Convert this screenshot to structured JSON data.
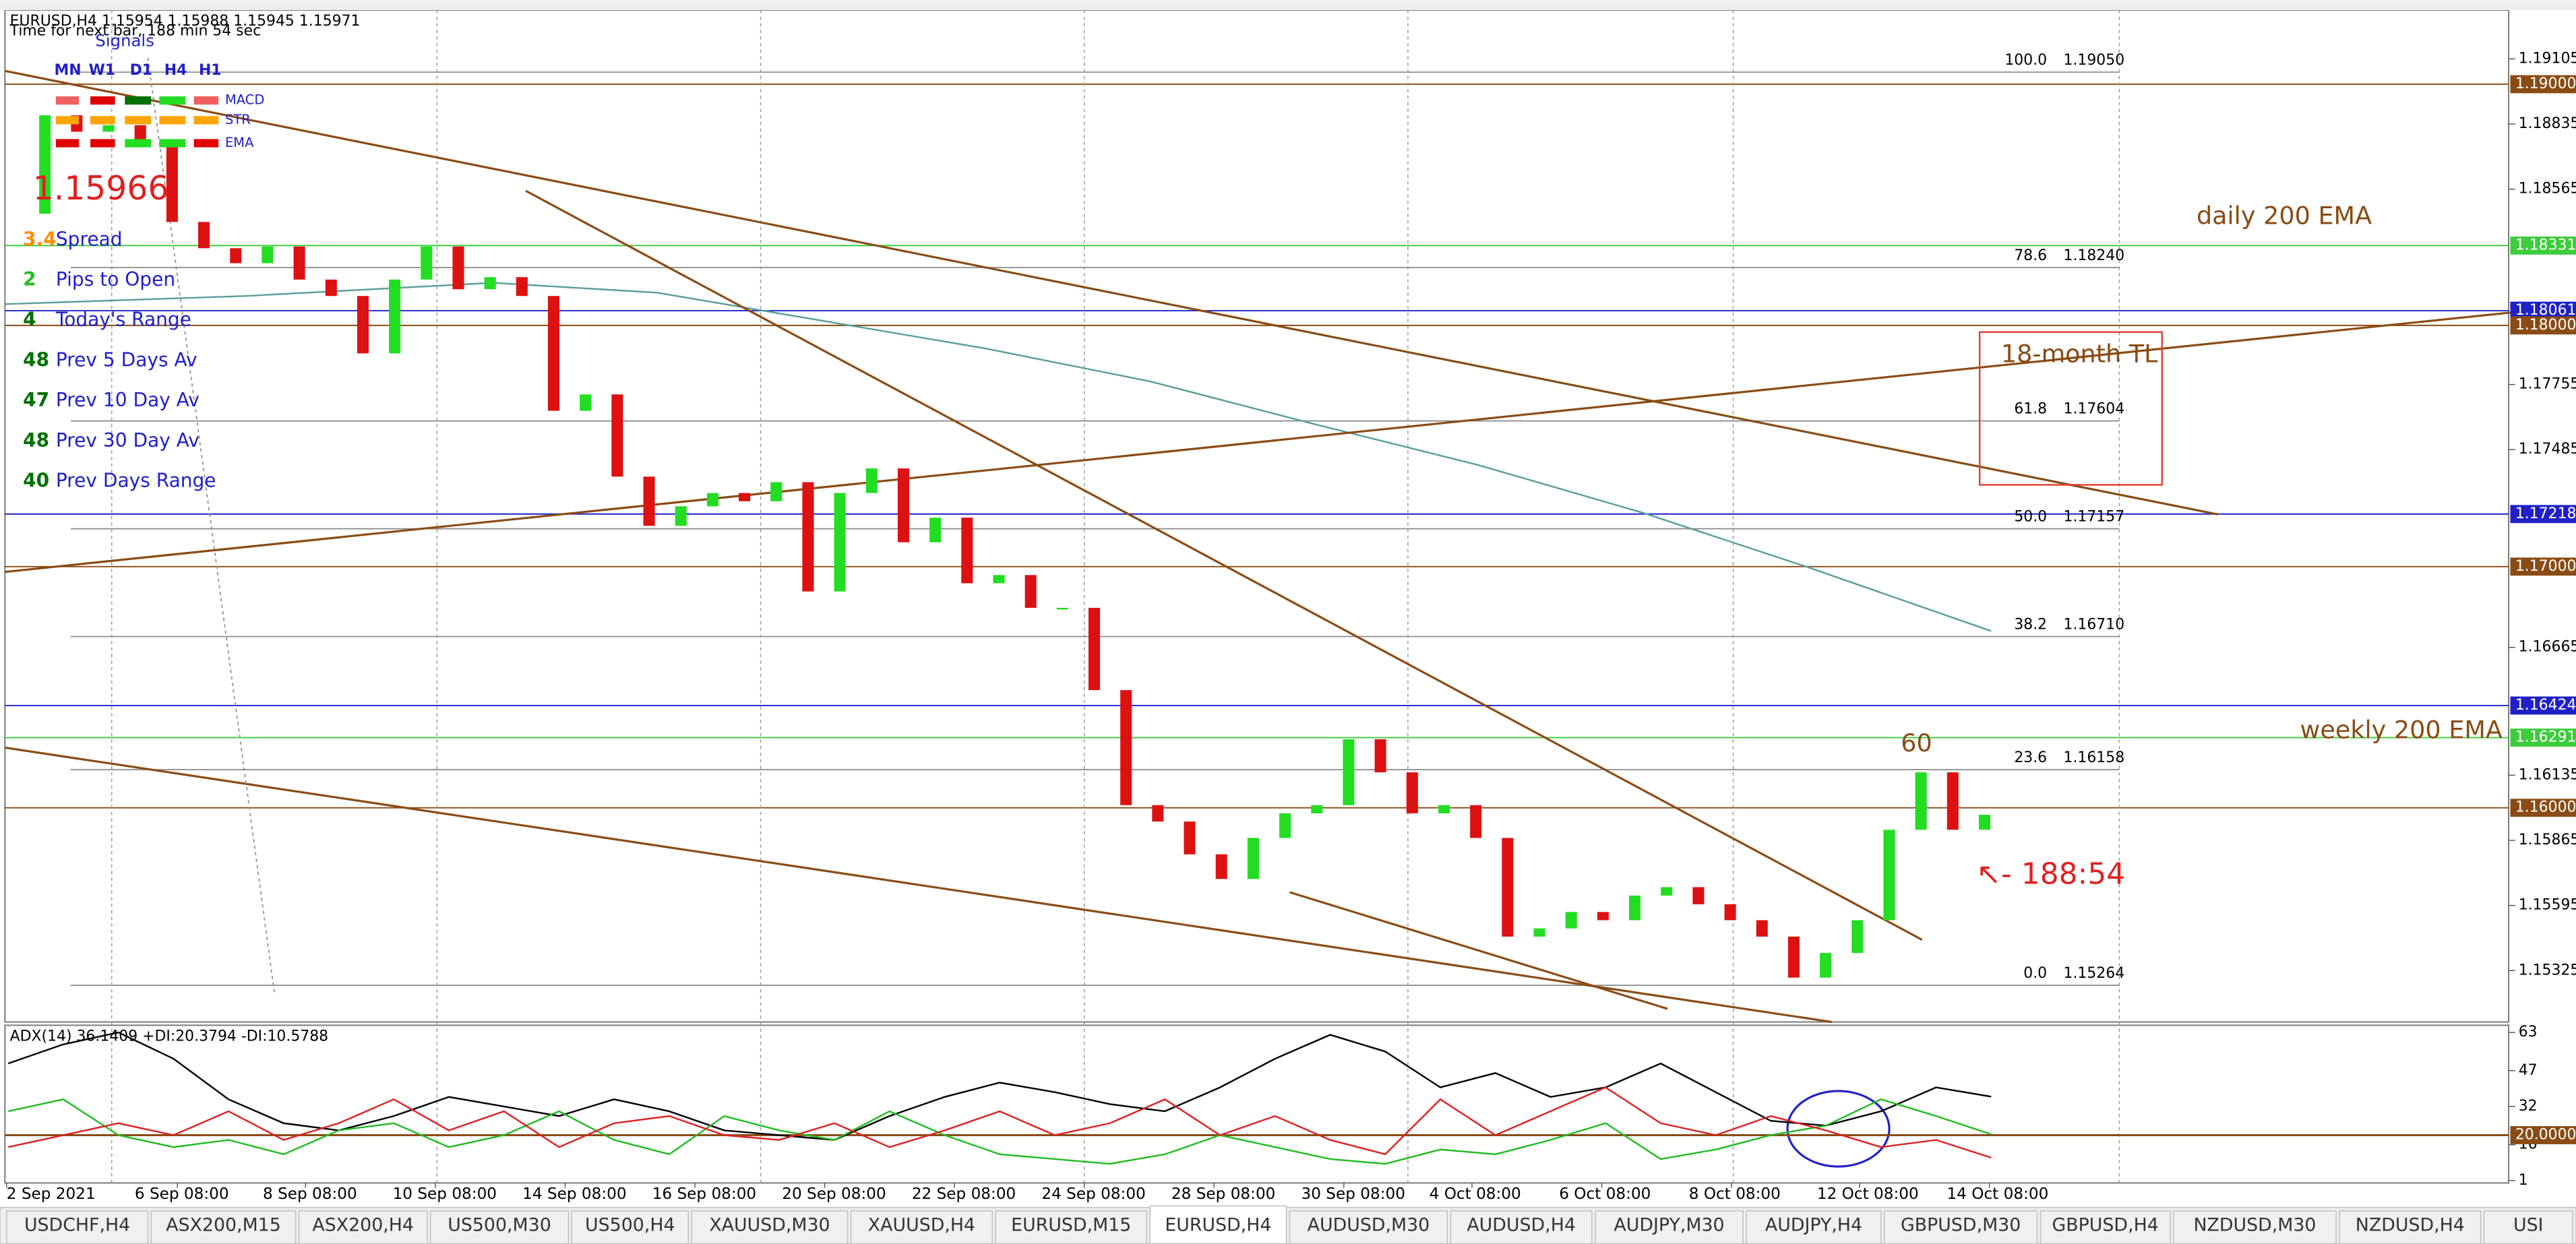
{
  "header": {
    "symbol_line": "EURUSD,H4  1.15954 1.15988 1.15945 1.15971",
    "timer": "Time for next bar, 188 min 54 sec"
  },
  "signals": {
    "title": "Signals",
    "timeframes": [
      "MN",
      "W1",
      "D1",
      "H4",
      "H1"
    ],
    "indicators": [
      "MACD",
      "STR",
      "EMA"
    ]
  },
  "current_price": 1.15966,
  "info_rows": [
    {
      "value": 3.4,
      "label": "Spread"
    },
    {
      "value": 2,
      "label": "Pips to Open"
    },
    {
      "value": 4,
      "label": "Today's Range"
    },
    {
      "value": 48,
      "label": "Prev 5 Days Av"
    },
    {
      "value": 47,
      "label": "Prev 10 Day Av"
    },
    {
      "value": 48,
      "label": "Prev 30 Day Av"
    },
    {
      "value": 40,
      "label": "Prev Days Range"
    }
  ],
  "price_axis": {
    "ylim": [
      1.15112,
      1.19348
    ],
    "ticks": [
      1.19105,
      1.18835,
      1.18565,
      1.17755,
      1.17485,
      1.16665,
      1.16135,
      1.15865,
      1.15595,
      1.15325
    ],
    "level_boxes": [
      {
        "value": 1.19,
        "label": "1.19000",
        "color": "#8a4b14"
      },
      {
        "value": 1.18331,
        "color": "#3ccc3c"
      },
      {
        "value": 1.18061,
        "color": "#2020c8"
      },
      {
        "value": 1.18,
        "label": "1.18000",
        "color": "#8a4b14"
      },
      {
        "value": 1.17218,
        "color": "#2020c8"
      },
      {
        "value": 1.17,
        "label": "1.17000",
        "color": "#8a4b14"
      },
      {
        "value": 1.16424,
        "color": "#2020c8"
      },
      {
        "value": 1.16291,
        "color": "#3ccc3c"
      },
      {
        "value": 1.16,
        "label": "1.16000",
        "color": "#8a4b14"
      }
    ]
  },
  "fib_levels": [
    {
      "pct": {
        "value": 100,
        "label": "100.0"
      },
      "price": {
        "value": 1.1905,
        "label": "1.19050"
      }
    },
    {
      "pct": 78.6,
      "price": {
        "value": 1.1824,
        "label": "1.18240"
      }
    },
    {
      "pct": 61.8,
      "price": 1.17604
    },
    {
      "pct": {
        "value": 50,
        "label": "50.0"
      },
      "price": 1.17157
    },
    {
      "pct": 38.2,
      "price": {
        "value": 1.1671,
        "label": "1.16710"
      }
    },
    {
      "pct": 23.6,
      "price": 1.16158
    },
    {
      "pct": {
        "value": 0,
        "label": "0.0"
      },
      "price": 1.15264
    }
  ],
  "candles": {
    "closes": [
      1.18463,
      1.18871,
      1.18803,
      1.1883,
      1.1876,
      1.18429,
      1.1832,
      1.18258,
      1.18327,
      1.1819,
      1.18122,
      1.17884,
      1.1819,
      1.18327,
      1.1815,
      1.182,
      1.18122,
      1.17646,
      1.17714,
      1.17373,
      1.17169,
      1.1725,
      1.17305,
      1.17271,
      1.1735,
      1.16897,
      1.17305,
      1.17407,
      1.17101,
      1.17203,
      1.16931,
      1.16965,
      1.16829,
      1.16829,
      1.16488,
      1.16011,
      1.15943,
      1.15807,
      1.15705,
      1.15875,
      1.15977,
      1.16011,
      1.16284,
      1.16147,
      1.15977,
      1.16011,
      1.15875,
      1.15466,
      1.155,
      1.15568,
      1.15534,
      1.15636,
      1.15671,
      1.156,
      1.15534,
      1.15466,
      1.15296,
      1.15398,
      1.15534,
      1.15909,
      1.16147,
      1.15909,
      1.15971
    ],
    "up_color": "#22dd22",
    "down_color": "#dd1111"
  },
  "annotations": {
    "daily_ema": "daily 200 EMA",
    "trendline": "18-month TL",
    "weekly_ema": "weekly 200 EMA",
    "pips": 60,
    "countdown": "↖- 188:54"
  },
  "adx": {
    "title": "ADX(14) 36.1409 +DI:20.3794 -DI:10.5788",
    "ylim": [
      0,
      66
    ],
    "ticks": [
      63,
      47,
      32,
      16,
      1
    ],
    "level": {
      "value": 20,
      "label": "20.0000"
    },
    "series": [
      {
        "name": "ADX",
        "color": "#000000",
        "values": [
          50,
          58,
          63,
          52,
          35,
          25,
          22,
          28,
          36,
          32,
          28,
          35,
          30,
          22,
          20,
          18,
          28,
          36,
          42,
          38,
          33,
          30,
          40,
          52,
          62,
          55,
          40,
          46,
          36,
          40,
          50,
          38,
          26,
          24,
          30,
          40,
          36.1409
        ]
      },
      {
        "name": "+DI",
        "color": "#22bb22",
        "values": [
          30,
          35,
          20,
          15,
          18,
          12,
          22,
          25,
          15,
          20,
          30,
          18,
          12,
          28,
          22,
          18,
          30,
          20,
          12,
          10,
          8,
          12,
          20,
          15,
          10,
          8,
          14,
          12,
          18,
          25,
          10,
          14,
          20,
          24,
          35,
          28,
          20.3794
        ]
      },
      {
        "name": "-DI",
        "color": "#dd2222",
        "values": [
          15,
          20,
          25,
          20,
          30,
          18,
          25,
          35,
          22,
          30,
          15,
          25,
          28,
          20,
          18,
          25,
          15,
          22,
          30,
          20,
          25,
          35,
          20,
          28,
          18,
          12,
          35,
          20,
          30,
          40,
          25,
          20,
          28,
          22,
          15,
          18,
          10.5788
        ]
      }
    ]
  },
  "time_labels": [
    "2 Sep 2021",
    "6 Sep 08:00",
    "8 Sep 08:00",
    "10 Sep 08:00",
    "14 Sep 08:00",
    "16 Sep 08:00",
    "20 Sep 08:00",
    "22 Sep 08:00",
    "24 Sep 08:00",
    "28 Sep 08:00",
    "30 Sep 08:00",
    "4 Oct 08:00",
    "6 Oct 08:00",
    "8 Oct 08:00",
    "12 Oct 08:00",
    "14 Oct 08:00"
  ],
  "tabs": [
    "USDCHF,H4",
    "ASX200,M15",
    "ASX200,H4",
    "US500,M30",
    "US500,H4",
    "XAUUSD,M30",
    "XAUUSD,H4",
    "EURUSD,M15",
    "EURUSD,H4",
    "AUDUSD,M30",
    "AUDUSD,H4",
    "AUDJPY,M30",
    "AUDJPY,H4",
    "GBPUSD,M30",
    "GBPUSD,H4",
    "NZDUSD,M30",
    "NZDUSD,H4",
    "USI"
  ]
}
